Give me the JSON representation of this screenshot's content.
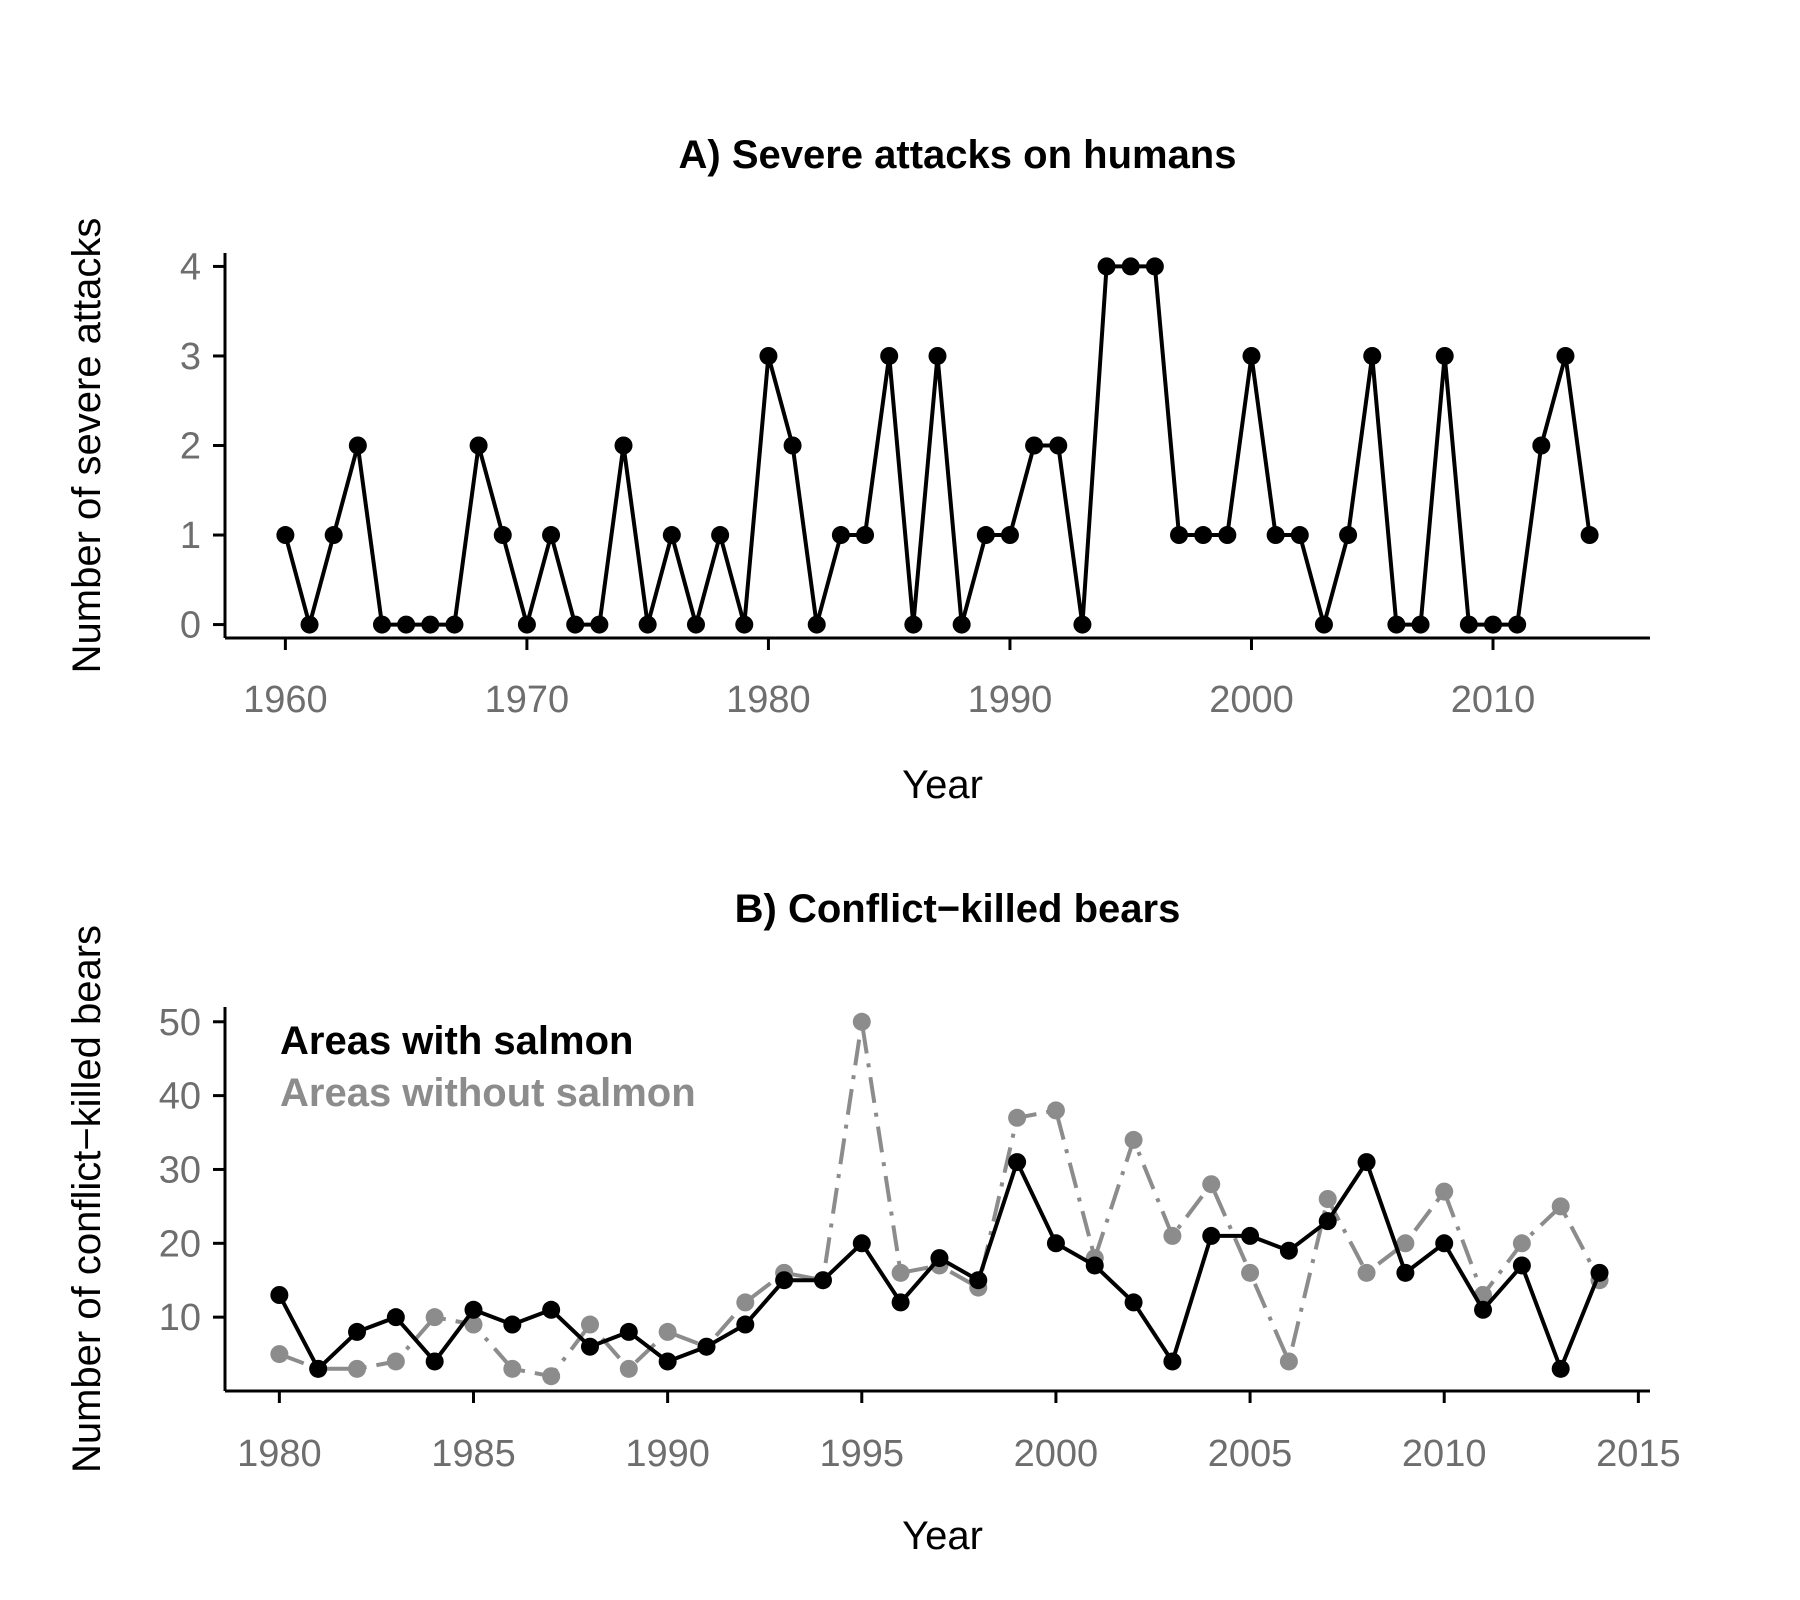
{
  "chart_data": [
    {
      "type": "line",
      "title": "A) Severe attacks on humans",
      "xlabel": "Year",
      "ylabel": "Number of severe attacks",
      "xlim": [
        1957.5,
        2016.5
      ],
      "ylim": [
        -0.15,
        4.15
      ],
      "xticks": [
        1960,
        1970,
        1980,
        1990,
        2000,
        2010
      ],
      "yticks": [
        0,
        1,
        2,
        3,
        4
      ],
      "grid": false,
      "series": [
        {
          "color": "#000000",
          "dash": "solid",
          "x": [
            1960,
            1961,
            1962,
            1963,
            1964,
            1965,
            1966,
            1967,
            1968,
            1969,
            1970,
            1971,
            1972,
            1973,
            1974,
            1975,
            1976,
            1977,
            1978,
            1979,
            1980,
            1981,
            1982,
            1983,
            1984,
            1985,
            1986,
            1987,
            1988,
            1989,
            1990,
            1991,
            1992,
            1993,
            1994,
            1995,
            1996,
            1997,
            1998,
            1999,
            2000,
            2001,
            2002,
            2003,
            2004,
            2005,
            2006,
            2007,
            2008,
            2009,
            2010,
            2011,
            2012,
            2013,
            2014
          ],
          "y": [
            1,
            0,
            1,
            2,
            0,
            0,
            0,
            0,
            2,
            1,
            0,
            1,
            0,
            0,
            2,
            0,
            1,
            0,
            1,
            0,
            3,
            2,
            0,
            1,
            1,
            3,
            0,
            3,
            0,
            1,
            1,
            2,
            2,
            0,
            4,
            4,
            4,
            1,
            1,
            1,
            3,
            1,
            1,
            0,
            1,
            3,
            0,
            0,
            3,
            0,
            0,
            0,
            2,
            3,
            1
          ]
        }
      ]
    },
    {
      "type": "line",
      "title": "B) Conflict−killed bears",
      "xlabel": "Year",
      "ylabel": "Number of conflict−killed bears",
      "xlim": [
        1978.6,
        2015.3
      ],
      "ylim": [
        0,
        52
      ],
      "xticks": [
        1980,
        1985,
        1990,
        1995,
        2000,
        2005,
        2010,
        2015
      ],
      "yticks": [
        10,
        20,
        30,
        40,
        50
      ],
      "grid": false,
      "legend": "top-left",
      "series": [
        {
          "name": "Areas with salmon",
          "color": "#000000",
          "dash": "solid",
          "x": [
            1980,
            1981,
            1982,
            1983,
            1984,
            1985,
            1986,
            1987,
            1988,
            1989,
            1990,
            1991,
            1992,
            1993,
            1994,
            1995,
            1996,
            1997,
            1998,
            1999,
            2000,
            2001,
            2002,
            2003,
            2004,
            2005,
            2006,
            2007,
            2008,
            2009,
            2010,
            2011,
            2012,
            2013,
            2014
          ],
          "y": [
            13,
            3,
            8,
            10,
            4,
            11,
            9,
            11,
            6,
            8,
            4,
            6,
            9,
            15,
            15,
            20,
            12,
            18,
            15,
            31,
            20,
            17,
            12,
            4,
            21,
            21,
            19,
            23,
            31,
            16,
            20,
            11,
            17,
            3,
            16
          ]
        },
        {
          "name": "Areas without salmon",
          "color": "#8c8c8c",
          "dash": "dashdot",
          "x": [
            1980,
            1981,
            1982,
            1983,
            1984,
            1985,
            1986,
            1987,
            1988,
            1989,
            1990,
            1991,
            1992,
            1993,
            1994,
            1995,
            1996,
            1997,
            1998,
            1999,
            2000,
            2001,
            2002,
            2003,
            2004,
            2005,
            2006,
            2007,
            2008,
            2009,
            2010,
            2011,
            2012,
            2013,
            2014
          ],
          "y": [
            5,
            3,
            3,
            4,
            10,
            9,
            3,
            2,
            9,
            3,
            8,
            6,
            12,
            16,
            15,
            50,
            16,
            17,
            14,
            37,
            38,
            18,
            34,
            21,
            28,
            16,
            4,
            26,
            16,
            20,
            27,
            13,
            20,
            25,
            15
          ]
        }
      ]
    }
  ]
}
